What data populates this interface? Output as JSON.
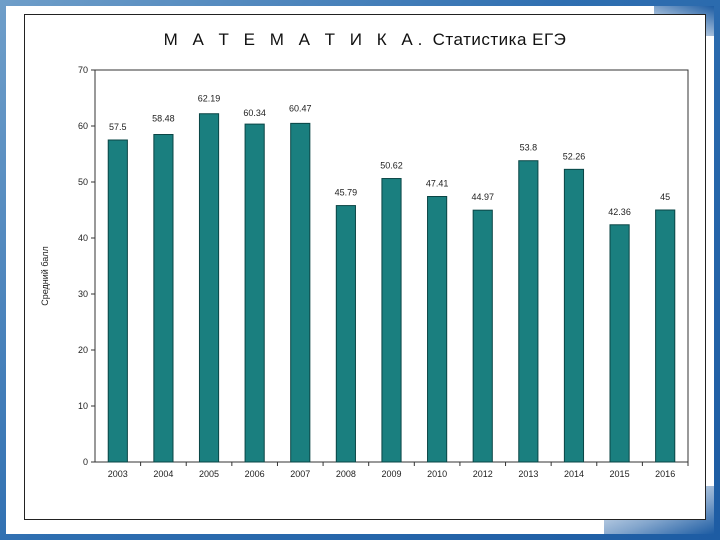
{
  "title_part1": "М А Т Е М А Т И К А.",
  "title_part2": "Статистика ЕГЭ",
  "colors": {
    "bar": "#1a7f7f",
    "bar_stroke": "#0a4545",
    "frame": "#1d5ca3"
  },
  "chart_data": {
    "type": "bar",
    "title": "М А Т Е М А Т И К А. Статистика ЕГЭ",
    "xlabel": "",
    "ylabel": "Средний балл",
    "ylim": [
      0,
      70
    ],
    "yticks": [
      0,
      10,
      20,
      30,
      40,
      50,
      60,
      70
    ],
    "grid": false,
    "categories": [
      "2003",
      "2004",
      "2005",
      "2006",
      "2007",
      "2008",
      "2009",
      "2010",
      "2012",
      "2013",
      "2014",
      "2015",
      "2016"
    ],
    "values": [
      57.5,
      58.48,
      62.19,
      60.34,
      60.47,
      45.79,
      50.62,
      47.41,
      44.97,
      53.8,
      52.26,
      42.36,
      45
    ],
    "data_labels": [
      "57.5",
      "58.48",
      "62.19",
      "60.34",
      "60.47",
      "45.79",
      "50.62",
      "47.41",
      "44.97",
      "53.8",
      "52.26",
      "42.36",
      "45"
    ]
  }
}
